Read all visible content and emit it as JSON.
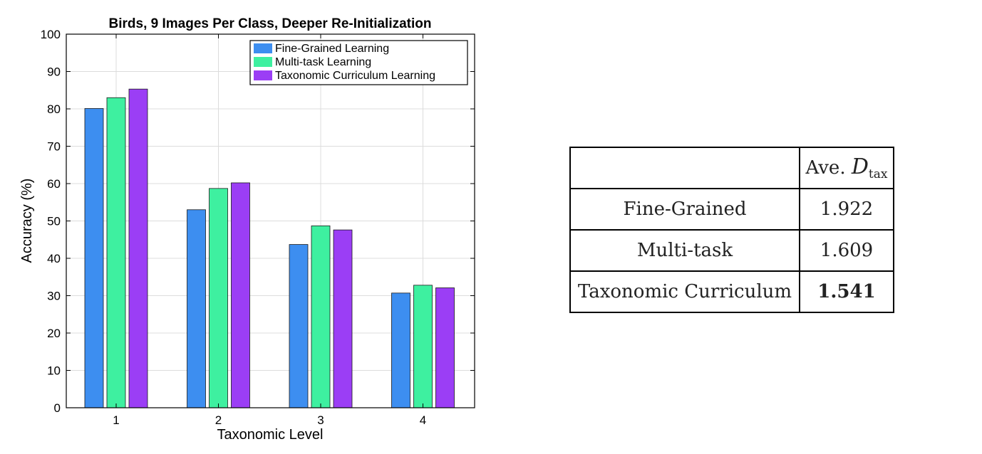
{
  "chart_data": {
    "type": "bar",
    "title": "Birds, 9 Images Per Class, Deeper Re-Initialization",
    "xlabel": "Taxonomic Level",
    "ylabel": "Accuracy (%)",
    "categories": [
      "1",
      "2",
      "3",
      "4"
    ],
    "ylim": [
      0,
      100
    ],
    "yticks": [
      "0",
      "10",
      "20",
      "30",
      "40",
      "50",
      "60",
      "70",
      "80",
      "90",
      "100"
    ],
    "grid": true,
    "legend_position": "top-right",
    "series": [
      {
        "name": "Fine-Grained Learning",
        "color": "#3d8ef0",
        "values": [
          80.1,
          53.0,
          43.7,
          30.7
        ]
      },
      {
        "name": "Multi-task Learning",
        "color": "#3ef0a0",
        "values": [
          83.0,
          58.7,
          48.7,
          32.8
        ]
      },
      {
        "name": "Taxonomic Curriculum Learning",
        "color": "#9b3ef5",
        "values": [
          85.3,
          60.2,
          47.6,
          32.1
        ]
      }
    ]
  },
  "table": {
    "header": {
      "label": "Ave. ",
      "symbol": "D",
      "subscript": "tax"
    },
    "rows": [
      {
        "method": "Fine-Grained",
        "value": "1.922",
        "bold": false
      },
      {
        "method": "Multi-task",
        "value": "1.609",
        "bold": false
      },
      {
        "method": "Taxonomic Curriculum",
        "value": "1.541",
        "bold": true
      }
    ]
  }
}
